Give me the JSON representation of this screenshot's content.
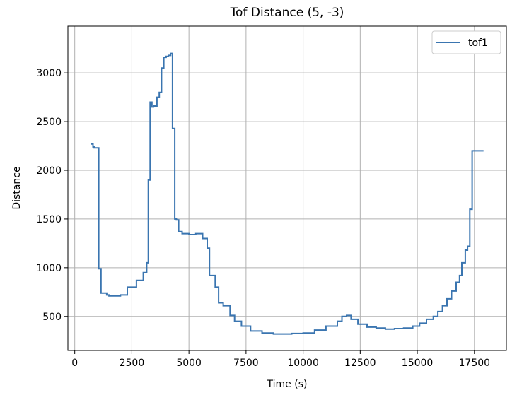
{
  "chart_data": {
    "type": "line",
    "title": "Tof Distance (5, -3)",
    "xlabel": "Time (s)",
    "ylabel": "Distance",
    "xlim": [
      -300,
      18900
    ],
    "ylim": [
      150,
      3480
    ],
    "xticks": [
      0,
      2500,
      5000,
      7500,
      10000,
      12500,
      15000,
      17500
    ],
    "yticks": [
      500,
      1000,
      1500,
      2000,
      2500,
      3000
    ],
    "grid": true,
    "legend_position": "top-right",
    "series": [
      {
        "name": "tof1",
        "color": "#3a75b0",
        "x": [
          700,
          800,
          850,
          950,
          1050,
          1150,
          1400,
          1500,
          2000,
          2300,
          2700,
          3000,
          3150,
          3220,
          3300,
          3380,
          3450,
          3600,
          3700,
          3800,
          3900,
          4000,
          4100,
          4200,
          4280,
          4380,
          4450,
          4550,
          4700,
          5000,
          5300,
          5600,
          5800,
          5900,
          6000,
          6150,
          6300,
          6500,
          6800,
          7000,
          7300,
          7700,
          8200,
          8700,
          9000,
          9500,
          10000,
          10500,
          11000,
          11500,
          11700,
          11900,
          12100,
          12400,
          12800,
          13200,
          13600,
          14000,
          14400,
          14800,
          15100,
          15400,
          15700,
          15900,
          16100,
          16300,
          16500,
          16700,
          16850,
          16950,
          17100,
          17200,
          17300,
          17400,
          17500,
          17900
        ],
        "y": [
          2270,
          2240,
          2230,
          2230,
          990,
          740,
          720,
          710,
          720,
          800,
          870,
          950,
          1050,
          1900,
          2700,
          2650,
          2660,
          2750,
          2800,
          3050,
          3160,
          3170,
          3180,
          3200,
          2430,
          1500,
          1490,
          1370,
          1350,
          1340,
          1350,
          1300,
          1200,
          920,
          920,
          800,
          640,
          610,
          510,
          450,
          400,
          350,
          330,
          320,
          320,
          325,
          330,
          360,
          400,
          450,
          500,
          510,
          470,
          420,
          390,
          380,
          370,
          375,
          380,
          400,
          430,
          470,
          500,
          550,
          610,
          680,
          760,
          850,
          920,
          1050,
          1180,
          1220,
          1600,
          2200,
          2200,
          2200
        ]
      }
    ]
  }
}
